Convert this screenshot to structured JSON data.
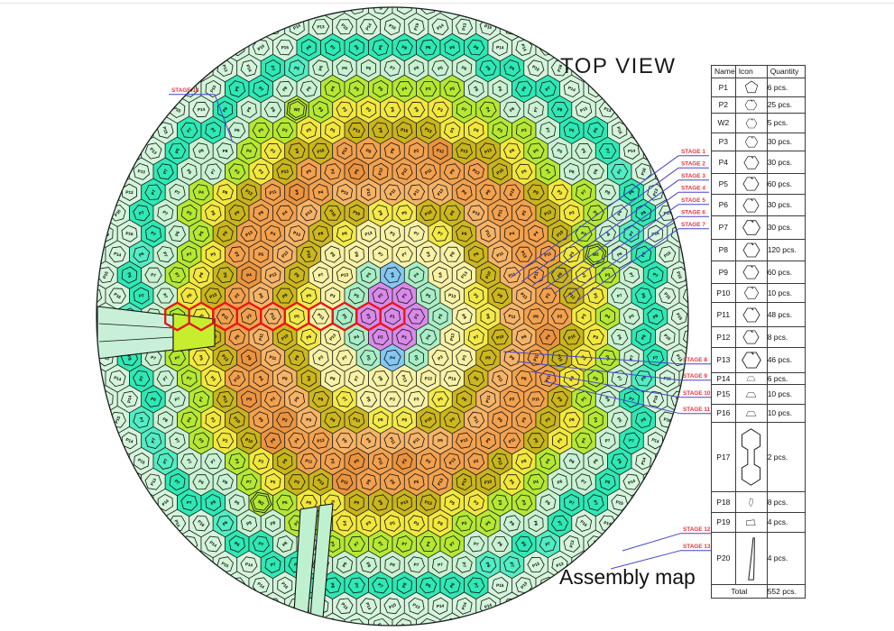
{
  "page": {
    "top_title": "TOP VIEW",
    "bottom_caption": "Assembly map"
  },
  "stages": {
    "list": [
      "STAGE 1",
      "STAGE 2",
      "STAGE 3",
      "STAGE 4",
      "STAGE 5",
      "STAGE 6",
      "STAGE 7",
      "STAGE 8",
      "STAGE 9",
      "STAGE 10",
      "STAGE 11",
      "STAGE 12",
      "STAGE 13",
      "STAGE 14"
    ],
    "label_color": "#e8333f",
    "leader_color": "#4343d2"
  },
  "parts_table": {
    "headers": [
      "Name",
      "Icon",
      "Quantity"
    ],
    "rows": [
      {
        "name": "P1",
        "icon": "pentagon-icon",
        "qty": "6 pcs."
      },
      {
        "name": "P2",
        "icon": "hexagon-icon",
        "qty": "25 pcs."
      },
      {
        "name": "W2",
        "icon": "hexagon-icon",
        "qty": "5 pcs."
      },
      {
        "name": "P3",
        "icon": "hexagon-icon",
        "qty": "30 pcs."
      },
      {
        "name": "P4",
        "icon": "hexagon-icon",
        "qty": "30 pcs."
      },
      {
        "name": "P5",
        "icon": "hexagon-icon",
        "qty": "60 pcs."
      },
      {
        "name": "P6",
        "icon": "hexagon-icon",
        "qty": "30 pcs."
      },
      {
        "name": "P7",
        "icon": "hexagon-icon",
        "qty": "30 pcs."
      },
      {
        "name": "P8",
        "icon": "hexagon-icon",
        "qty": "120 pcs."
      },
      {
        "name": "P9",
        "icon": "hexagon-icon",
        "qty": "60 pcs."
      },
      {
        "name": "P10",
        "icon": "hexagon-icon",
        "qty": "10 pcs."
      },
      {
        "name": "P11",
        "icon": "hexagon-icon",
        "qty": "48 pcs."
      },
      {
        "name": "P12",
        "icon": "hexagon-icon",
        "qty": "8 pcs."
      },
      {
        "name": "P13",
        "icon": "hexagon-icon",
        "qty": "46 pcs."
      },
      {
        "name": "P14",
        "icon": "trapezoid-icon",
        "qty": "6 pcs."
      },
      {
        "name": "P15",
        "icon": "trapezoid-icon",
        "qty": "10 pcs."
      },
      {
        "name": "P16",
        "icon": "trapezoid-icon",
        "qty": "10 pcs."
      },
      {
        "name": "P17",
        "icon": "dumbbell-icon",
        "qty": "2 pcs."
      },
      {
        "name": "P18",
        "icon": "wedge-icon",
        "qty": "8 pcs."
      },
      {
        "name": "P19",
        "icon": "quad-icon",
        "qty": "4 pcs."
      },
      {
        "name": "P20",
        "icon": "blade-icon",
        "qty": "4 pcs."
      }
    ],
    "total_label": "Total",
    "total_qty": "552 pcs."
  },
  "map": {
    "special_piece_label": "W2",
    "highlight_color": "#e81414",
    "outline_color": "#1c1c1c",
    "bands": [
      {
        "name": "center-purple",
        "color": "#d98ae9",
        "labels": [
          "P1",
          "P2",
          "P3"
        ]
      },
      {
        "name": "ring-blue",
        "color": "#84c8f2",
        "labels": [
          "P3",
          "P4"
        ]
      },
      {
        "name": "ring-mint",
        "color": "#a9eec6",
        "labels": [
          "P4",
          "P5"
        ]
      },
      {
        "name": "ring-cream",
        "color": "#f8f2a6",
        "labels": [
          "P3",
          "P7",
          "P8",
          "P13"
        ]
      },
      {
        "name": "ring-yellow",
        "color": "#f3e94b",
        "labels": [
          "P7",
          "P8",
          "P5"
        ]
      },
      {
        "name": "ring-olive",
        "color": "#cdb71e",
        "labels": [
          "P9",
          "P10",
          "P8"
        ]
      },
      {
        "name": "ring-light-orange",
        "color": "#f6b468",
        "labels": [
          "P11",
          "P13",
          "P9"
        ]
      },
      {
        "name": "ring-orange",
        "color": "#f2a14e",
        "labels": [
          "P8",
          "P9",
          "P11",
          "P12",
          "P13",
          "P4",
          "P5",
          "P2"
        ]
      },
      {
        "name": "ring-olive-outer",
        "color": "#c9b51c",
        "labels": [
          "P10",
          "P13",
          "P9"
        ]
      },
      {
        "name": "ring-yellow-outer",
        "color": "#f2e73e",
        "labels": [
          "P5",
          "P8",
          "P3"
        ]
      },
      {
        "name": "ring-chartreuse",
        "color": "#b5e833",
        "labels": [
          "P3",
          "P7",
          "P4",
          "P5"
        ]
      },
      {
        "name": "ring-pale-mint",
        "color": "#c9f2d2",
        "labels": [
          "P6",
          "P7",
          "P8"
        ]
      },
      {
        "name": "ring-turquoise",
        "color": "#2fe8b4",
        "labels": [
          "P8",
          "P6",
          "P7"
        ]
      },
      {
        "name": "rim-mint",
        "color": "#d4f5dc",
        "labels": [
          "P13",
          "P14",
          "P15",
          "P16"
        ]
      }
    ]
  }
}
